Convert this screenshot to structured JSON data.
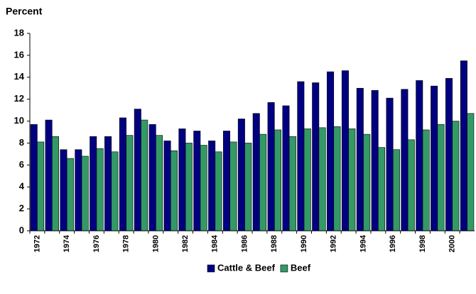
{
  "chart_data": {
    "type": "bar",
    "y_label": "Percent",
    "categories": [
      "1972",
      null,
      "1974",
      null,
      "1976",
      null,
      "1978",
      null,
      "1980",
      null,
      "1982",
      null,
      "1984",
      null,
      "1986",
      null,
      "1988",
      null,
      "1990",
      null,
      "1992",
      null,
      "1994",
      null,
      "1996",
      null,
      "1998",
      null,
      "2000",
      null
    ],
    "series": [
      {
        "name": "Cattle & Beef",
        "color": "#000080",
        "values": [
          9.7,
          10.1,
          7.4,
          7.4,
          8.6,
          8.6,
          10.3,
          11.1,
          9.7,
          8.2,
          9.3,
          9.1,
          8.2,
          9.1,
          10.2,
          10.7,
          11.7,
          11.4,
          13.6,
          13.5,
          14.5,
          14.6,
          13.0,
          12.8,
          12.1,
          12.9,
          13.7,
          13.2,
          13.9,
          15.5
        ]
      },
      {
        "name": "Beef",
        "color": "#339966",
        "values": [
          8.1,
          8.6,
          6.6,
          6.8,
          7.5,
          7.2,
          8.7,
          10.1,
          8.7,
          7.3,
          8.0,
          7.8,
          7.2,
          8.1,
          8.0,
          8.8,
          9.2,
          8.6,
          9.3,
          9.4,
          9.5,
          9.3,
          8.8,
          7.6,
          7.4,
          8.3,
          9.2,
          9.7,
          10.0,
          10.7
        ]
      }
    ],
    "ylim": [
      0,
      18
    ],
    "yticks": [
      0,
      2,
      4,
      6,
      8,
      10,
      12,
      14,
      16,
      18
    ],
    "grid": false,
    "legend": "bottom"
  }
}
